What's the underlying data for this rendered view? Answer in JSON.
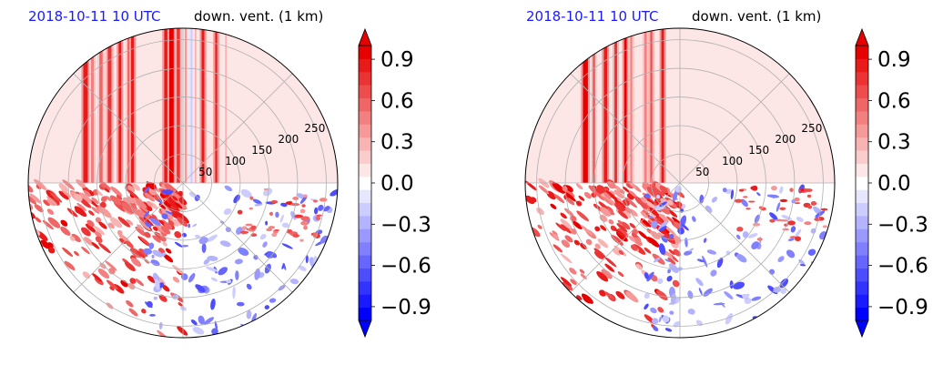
{
  "figure": {
    "colors": {
      "positive": "#e60000",
      "negative": "#0000ff",
      "neutral": "#ffffff",
      "title_left": "#1a1aff",
      "grid": "#b0b0b0"
    }
  },
  "chart_data": [
    {
      "type": "heatmap",
      "projection": "polar",
      "title_left": "2018-10-11 10 UTC",
      "title_right": "down. vent. (1 km)",
      "r_ticks": [
        50,
        100,
        150,
        200,
        250
      ],
      "r_range": [
        0,
        270
      ],
      "grid": true,
      "colorbar": {
        "ticks": [
          "0.9",
          "0.6",
          "0.3",
          "0.0",
          "−0.3",
          "−0.6",
          "−0.9"
        ],
        "tick_values": [
          0.9,
          0.6,
          0.3,
          0.0,
          -0.3,
          -0.6,
          -0.9
        ],
        "range": [
          -1.0,
          1.0
        ],
        "extend": "both",
        "levels": 21
      },
      "stripes_upper_left": [
        {
          "x": -170,
          "w": 8,
          "v": 0.9
        },
        {
          "x": -158,
          "w": 5,
          "v": 0.5
        },
        {
          "x": -143,
          "w": 6,
          "v": 0.6
        },
        {
          "x": -128,
          "w": 7,
          "v": 0.8
        },
        {
          "x": -110,
          "w": 5,
          "v": 0.9
        },
        {
          "x": -95,
          "w": 4,
          "v": 0.6
        },
        {
          "x": -88,
          "w": 5,
          "v": 0.9
        },
        {
          "x": -30,
          "w": 6,
          "v": 0.9
        },
        {
          "x": -20,
          "w": 8,
          "v": 1.0
        },
        {
          "x": -8,
          "w": 6,
          "v": 0.8
        }
      ],
      "stripes_upper_right": [
        {
          "x": 5,
          "w": 4,
          "v": 0.35
        },
        {
          "x": 15,
          "w": 3,
          "v": -0.25
        },
        {
          "x": 22,
          "w": 3,
          "v": 0.3
        },
        {
          "x": 35,
          "w": 5,
          "v": 0.9
        },
        {
          "x": 58,
          "w": 4,
          "v": 0.9
        },
        {
          "x": 75,
          "w": 3,
          "v": 0.3
        }
      ],
      "texture_seed": 7
    },
    {
      "type": "heatmap",
      "projection": "polar",
      "title_left": "2018-10-11 10 UTC",
      "title_right": "down. vent. (1 km)",
      "r_ticks": [
        50,
        100,
        150,
        200,
        250
      ],
      "r_range": [
        0,
        270
      ],
      "grid": true,
      "colorbar": {
        "ticks": [
          "0.9",
          "0.6",
          "0.3",
          "0.0",
          "−0.3",
          "−0.6",
          "−0.9"
        ],
        "tick_values": [
          0.9,
          0.6,
          0.3,
          0.0,
          -0.3,
          -0.6,
          -0.9
        ],
        "range": [
          -1.0,
          1.0
        ],
        "extend": "both",
        "levels": 21
      },
      "stripes_upper_left": [
        {
          "x": -165,
          "w": 9,
          "v": 1.0
        },
        {
          "x": -150,
          "w": 5,
          "v": 0.6
        },
        {
          "x": -130,
          "w": 6,
          "v": 0.9
        },
        {
          "x": -112,
          "w": 5,
          "v": 0.8
        },
        {
          "x": -95,
          "w": 5,
          "v": 1.0
        },
        {
          "x": -85,
          "w": 4,
          "v": 0.5
        },
        {
          "x": -60,
          "w": 5,
          "v": 0.5
        },
        {
          "x": -50,
          "w": 4,
          "v": 0.7
        },
        {
          "x": -30,
          "w": 5,
          "v": 0.9
        }
      ],
      "stripes_upper_right": [],
      "texture_seed": 19
    }
  ]
}
